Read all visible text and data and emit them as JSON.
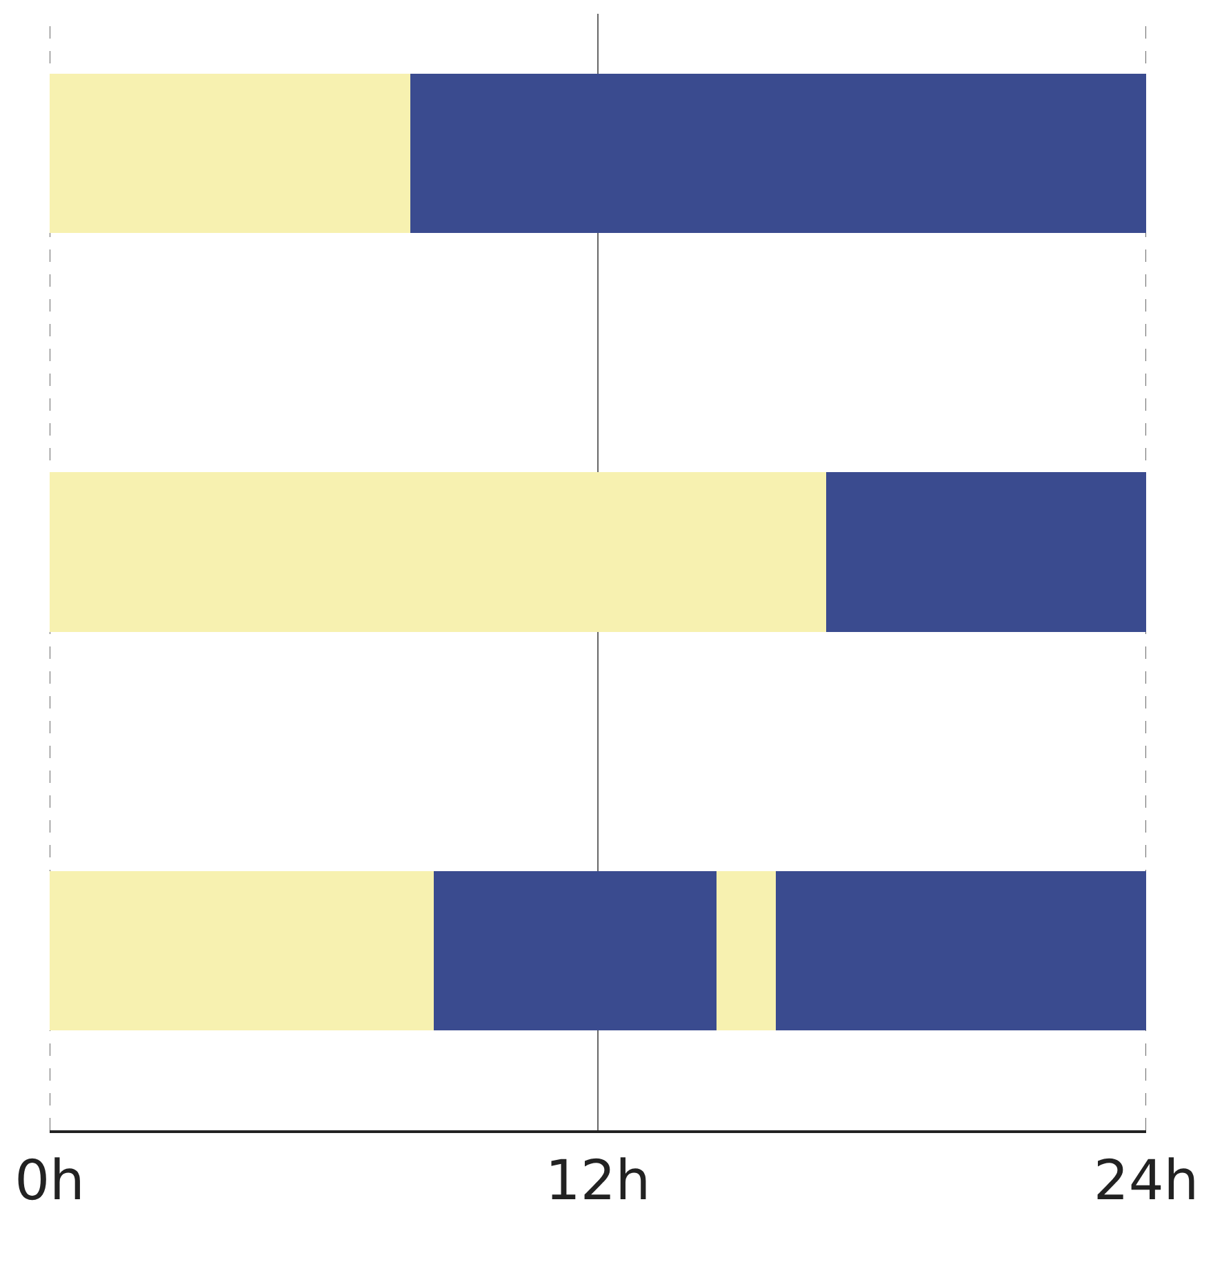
{
  "chart_data": {
    "type": "bar",
    "orientation": "horizontal",
    "stacked": true,
    "categories": [
      null,
      null,
      null
    ],
    "series": [
      {
        "color": "#f7f1b0",
        "values": [
          7.9,
          17,
          8.4
        ]
      },
      {
        "color": "#3a4b8f",
        "values": [
          16.1,
          7,
          6.2
        ]
      },
      {
        "color": "#f7f1b0",
        "values": [
          null,
          null,
          1.3
        ]
      },
      {
        "color": "#3a4b8f",
        "values": [
          null,
          null,
          8.1
        ]
      }
    ],
    "xlim": [
      0,
      24
    ],
    "xticks": [
      {
        "value": 0,
        "label": "0h"
      },
      {
        "value": 12,
        "label": "12h"
      },
      {
        "value": 24,
        "label": "24h"
      }
    ],
    "grid": "x",
    "tick_labels": "x"
  }
}
